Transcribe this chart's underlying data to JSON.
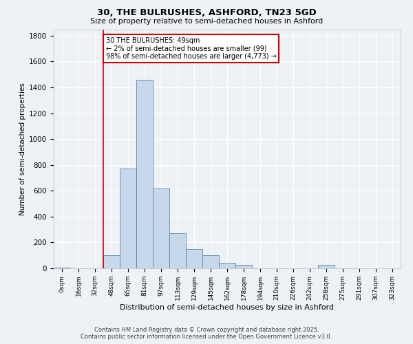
{
  "title_line1": "30, THE BULRUSHES, ASHFORD, TN23 5GD",
  "title_line2": "Size of property relative to semi-detached houses in Ashford",
  "xlabel": "Distribution of semi-detached houses by size in Ashford",
  "ylabel": "Number of semi-detached properties",
  "categories": [
    "0sqm",
    "16sqm",
    "32sqm",
    "48sqm",
    "65sqm",
    "81sqm",
    "97sqm",
    "113sqm",
    "129sqm",
    "145sqm",
    "162sqm",
    "178sqm",
    "194sqm",
    "210sqm",
    "226sqm",
    "242sqm",
    "258sqm",
    "275sqm",
    "291sqm",
    "307sqm",
    "323sqm"
  ],
  "bar_values": [
    5,
    0,
    0,
    100,
    770,
    1460,
    615,
    270,
    150,
    100,
    40,
    25,
    0,
    0,
    0,
    0,
    25,
    0,
    0,
    0,
    0
  ],
  "bar_color": "#c8d8eb",
  "bar_edge_color": "#5588aa",
  "subject_line_color": "#cc0000",
  "annotation_text": "30 THE BULRUSHES: 49sqm\n← 2% of semi-detached houses are smaller (99)\n98% of semi-detached houses are larger (4,773) →",
  "annotation_box_color": "#cc0000",
  "ylim": [
    0,
    1850
  ],
  "yticks": [
    0,
    200,
    400,
    600,
    800,
    1000,
    1200,
    1400,
    1600,
    1800
  ],
  "footer_line1": "Contains HM Land Registry data © Crown copyright and database right 2025.",
  "footer_line2": "Contains public sector information licensed under the Open Government Licence v3.0.",
  "background_color": "#eef2f7",
  "plot_background_color": "#eef2f7",
  "grid_color": "#ffffff"
}
